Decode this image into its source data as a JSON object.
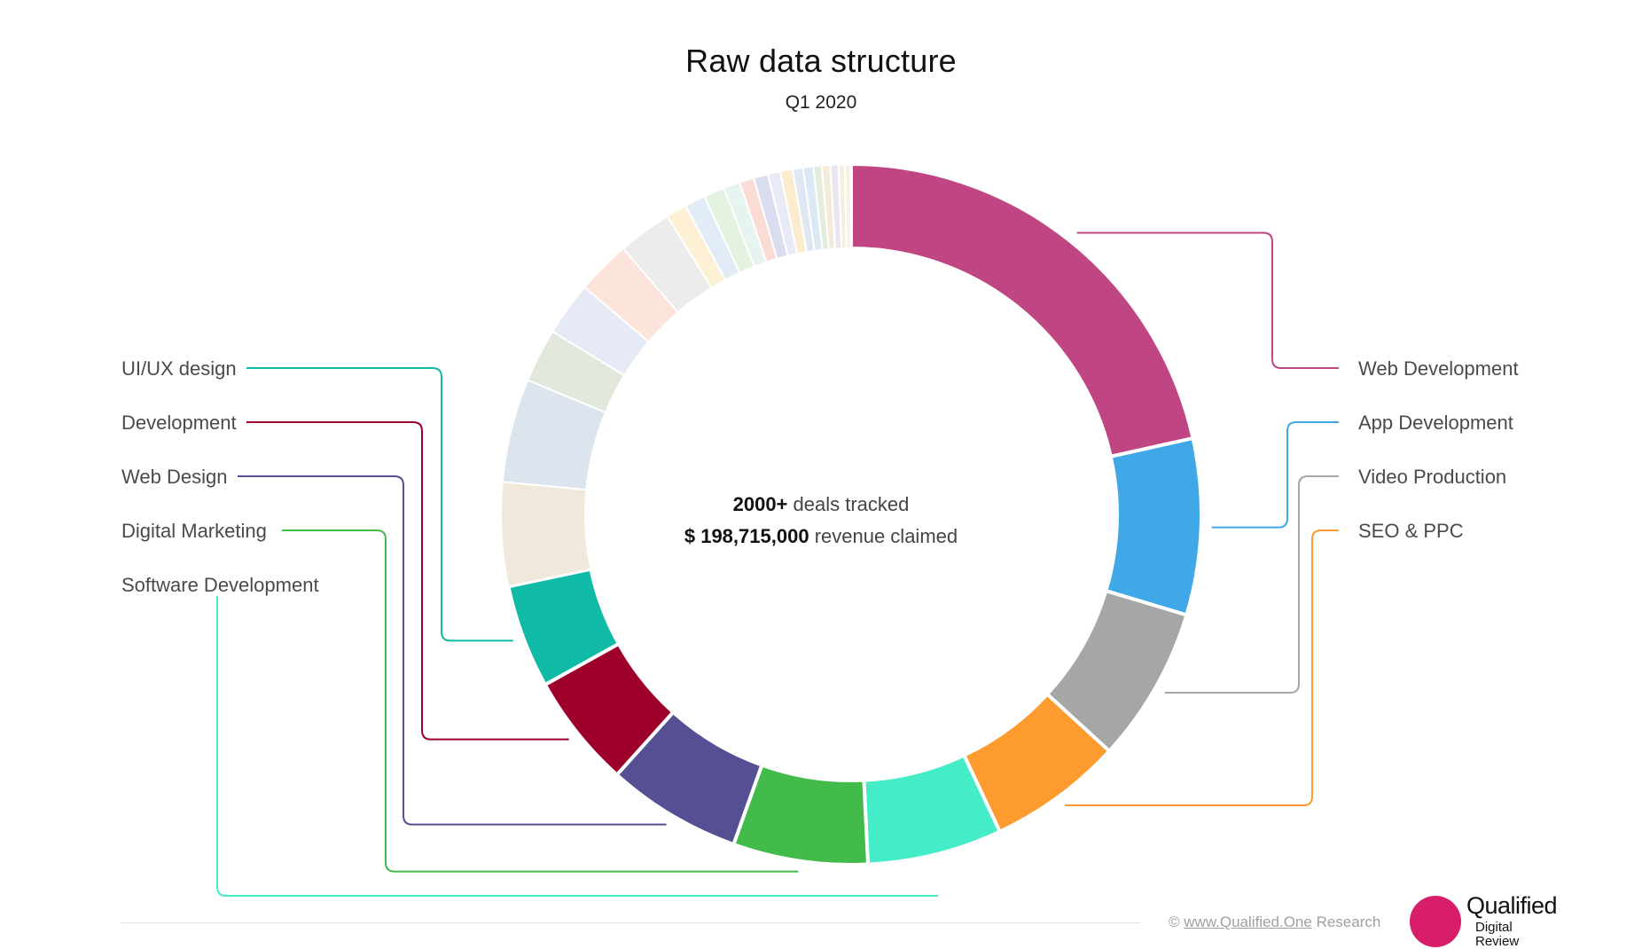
{
  "chart_data": {
    "type": "pie",
    "variant": "donut",
    "title": "Raw data structure",
    "subtitle": "Q1 2020",
    "center_text": {
      "line1_bold": "2000+",
      "line1_rest": "deals tracked",
      "line2_bold": "$ 198,715,000",
      "line2_rest": "revenue claimed"
    },
    "slices": [
      {
        "name": "Web Development",
        "value": 22.5,
        "color": "#c04583",
        "labelled": true
      },
      {
        "name": "App Development",
        "value": 8.5,
        "color": "#41a8e8",
        "labelled": true
      },
      {
        "name": "Video Production",
        "value": 7.5,
        "color": "#a6a6a6",
        "labelled": true
      },
      {
        "name": "SEO & PPC",
        "value": 6.5,
        "color": "#fd9b2f",
        "labelled": true
      },
      {
        "name": "Software Development",
        "value": 6.5,
        "color": "#44ecc7",
        "labelled": true
      },
      {
        "name": "Digital Marketing",
        "value": 6.5,
        "color": "#43bb4a",
        "labelled": true
      },
      {
        "name": "Web Design",
        "value": 6.5,
        "color": "#554f94",
        "labelled": true
      },
      {
        "name": "Development",
        "value": 5.5,
        "color": "#9e002c",
        "labelled": true
      },
      {
        "name": "UI/UX design",
        "value": 5.0,
        "color": "#0fbaa6",
        "labelled": true
      },
      {
        "name": "",
        "value": 5.0,
        "color": "#f0e8db",
        "labelled": false
      },
      {
        "name": "",
        "value": 5.0,
        "color": "#dce4ee",
        "labelled": false
      },
      {
        "name": "",
        "value": 2.6,
        "color": "#e2e8dc",
        "labelled": false
      },
      {
        "name": "",
        "value": 2.6,
        "color": "#e6eaf6",
        "labelled": false
      },
      {
        "name": "",
        "value": 2.6,
        "color": "#fde4da",
        "labelled": false
      },
      {
        "name": "",
        "value": 2.6,
        "color": "#ececec",
        "labelled": false
      },
      {
        "name": "",
        "value": 1.0,
        "color": "#fdf0d4",
        "labelled": false
      },
      {
        "name": "",
        "value": 1.0,
        "color": "#e2ecf6",
        "labelled": false
      },
      {
        "name": "",
        "value": 1.0,
        "color": "#e4f2e0",
        "labelled": false
      },
      {
        "name": "",
        "value": 0.8,
        "color": "#e6f4f0",
        "labelled": false
      },
      {
        "name": "",
        "value": 0.7,
        "color": "#fbdcd4",
        "labelled": false
      },
      {
        "name": "",
        "value": 0.7,
        "color": "#d8ddef",
        "labelled": false
      },
      {
        "name": "",
        "value": 0.6,
        "color": "#e8eaf6",
        "labelled": false
      },
      {
        "name": "",
        "value": 0.6,
        "color": "#fbeccd",
        "labelled": false
      },
      {
        "name": "",
        "value": 0.5,
        "color": "#dfe7f3",
        "labelled": false
      },
      {
        "name": "",
        "value": 0.5,
        "color": "#dbe9f5",
        "labelled": false
      },
      {
        "name": "",
        "value": 0.4,
        "color": "#e4ecdc",
        "labelled": false
      },
      {
        "name": "",
        "value": 0.4,
        "color": "#f4ead8",
        "labelled": false
      },
      {
        "name": "",
        "value": 0.4,
        "color": "#eae6f0",
        "labelled": false
      },
      {
        "name": "",
        "value": 0.3,
        "color": "#f6efe0",
        "labelled": false
      },
      {
        "name": "",
        "value": 0.3,
        "color": "#f6f2ea",
        "labelled": false
      }
    ],
    "legend": "callout-labels"
  },
  "footer": {
    "copyright": "©",
    "site": "www.Qualified.One",
    "research": "Research"
  },
  "logo": {
    "name": "Qualified",
    "line2": "Digital",
    "line3": "Review",
    "color": "#d81e6a"
  }
}
